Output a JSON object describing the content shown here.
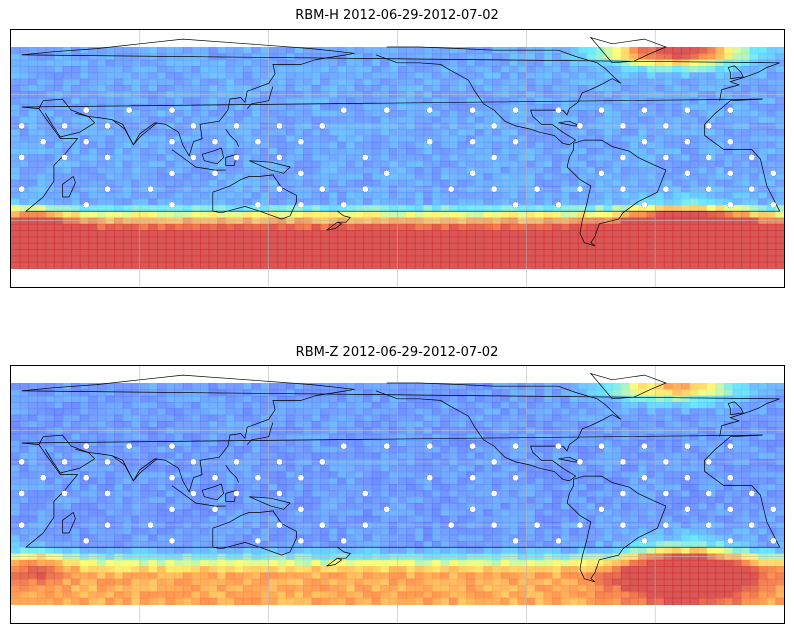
{
  "panels": [
    {
      "title": "RBM-H 2012-06-29-2012-07-02",
      "variable": "RBM-H",
      "date_range": "2012-06-29-2012-07-02",
      "field": {
        "equatorial_level": 0.18,
        "south_band_level": 0.95,
        "south_band_extent_deg": 22,
        "north_atlantic_hotspot_level": 0.85,
        "south_atlantic_hotspot_level": 1.0
      }
    },
    {
      "title": "RBM-Z 2012-06-29-2012-07-02",
      "variable": "RBM-Z",
      "date_range": "2012-06-29-2012-07-02",
      "field": {
        "equatorial_level": 0.15,
        "south_band_level": 0.55,
        "south_band_extent_deg": 16,
        "north_atlantic_hotspot_level": 0.55,
        "south_atlantic_hotspot_level": 0.85
      }
    }
  ],
  "colormap": [
    "#3f3fff",
    "#5f8bff",
    "#55e6ff",
    "#ffff66",
    "#ff8a3a",
    "#d23a3a"
  ],
  "map_extent": {
    "lon": [
      20,
      380
    ],
    "lat": [
      -70,
      70
    ]
  },
  "gridlines": {
    "lon_deg": [
      80,
      140,
      200,
      260,
      320
    ],
    "lat_deg": [
      -40,
      -20,
      20,
      40
    ]
  },
  "coastline_color": "#000000",
  "station_marker_color": "#ffffff"
}
